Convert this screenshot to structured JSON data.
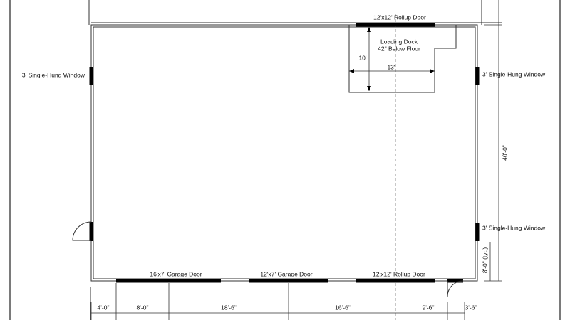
{
  "plan": {
    "top_door": "12'x12' Rollup Door",
    "loading_dock": {
      "title": "Loading Dock",
      "depth": "42\" Below Floor",
      "length": "10'",
      "width": "13'"
    },
    "windows": [
      "3' Single-Hung Window",
      "3' Single-Hung Window",
      "3' Single-Hung Window"
    ],
    "side_dimension": "40'-0\"",
    "window_offset": "8'-0\" (typ)",
    "bottom_doors": [
      "16'x7' Garage Door",
      "12'x7' Garage Door",
      "12'x12' Rollup Door"
    ],
    "bottom_dimensions": [
      "4'-0\"",
      "8'-0\"",
      "18'-6\"",
      "16'-6\"",
      "9'-6\"",
      "3'-6\""
    ]
  }
}
